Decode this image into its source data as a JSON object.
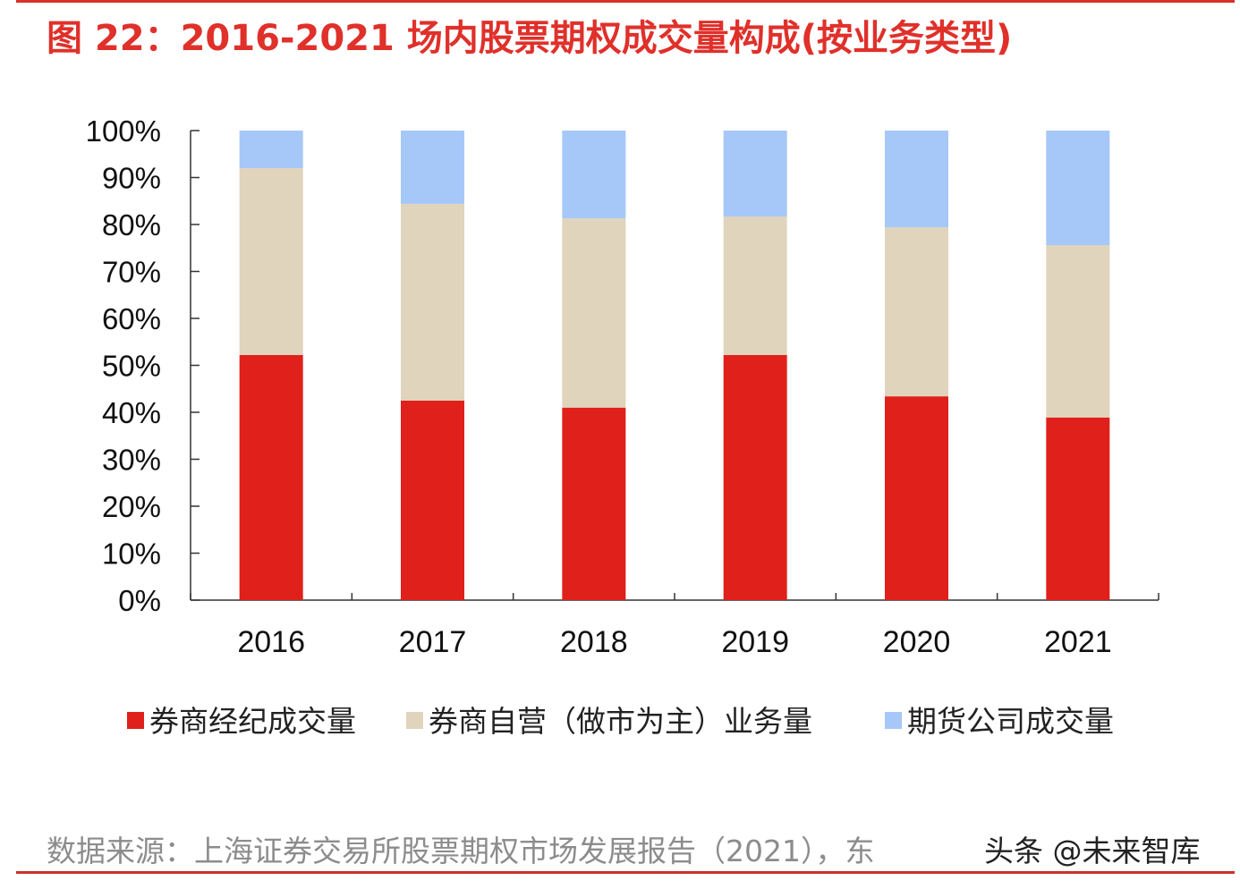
{
  "chart_data": {
    "type": "bar",
    "stacked": true,
    "title": "图 22：2016-2021 场内股票期权成交量构成(按业务类型)",
    "categories": [
      "2016",
      "2017",
      "2018",
      "2019",
      "2020",
      "2021"
    ],
    "series": [
      {
        "name": "券商经纪成交量",
        "color": "#e0201a",
        "values": [
          52.2,
          42.5,
          41.0,
          52.2,
          43.4,
          38.9
        ]
      },
      {
        "name": "券商自营（做市为主）业务量",
        "color": "#e0d4bc",
        "values": [
          39.8,
          41.9,
          40.3,
          29.5,
          36.0,
          36.7
        ]
      },
      {
        "name": "期货公司成交量",
        "color": "#a6c8f8",
        "values": [
          8.0,
          15.6,
          18.7,
          18.3,
          20.6,
          24.4
        ]
      }
    ],
    "yticks": [
      "0%",
      "10%",
      "20%",
      "30%",
      "40%",
      "50%",
      "60%",
      "70%",
      "80%",
      "90%",
      "100%"
    ],
    "ylim": [
      0,
      100
    ],
    "xlabel": "",
    "ylabel": "",
    "grid": false,
    "legend": "bottom"
  },
  "source": "数据来源：上海证券交易所股票期权市场发展报告（2021），东",
  "watermark": "头条 @未来智库"
}
